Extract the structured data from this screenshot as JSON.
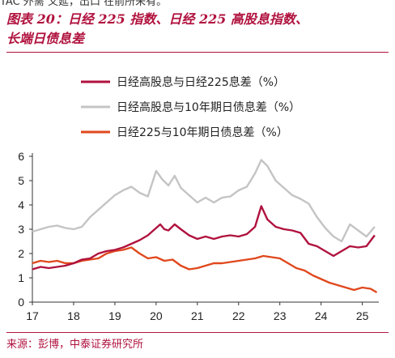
{
  "header": {
    "cut_text": "TAC 外需 又延，出口 在前所未有。",
    "title_line1": "图表 20：日经 225 指数、日经 225 高股息指数、",
    "title_line2": "长端日债息差"
  },
  "footer": {
    "source": "来源：彭博，中泰证券研究所"
  },
  "chart_data": {
    "type": "line",
    "title": "",
    "xlabel": "",
    "ylabel": "",
    "ylim": [
      0,
      6
    ],
    "yticks": [
      "0",
      "1",
      "2",
      "3",
      "4",
      "5",
      "6"
    ],
    "xlim": [
      2017.0,
      2025.4
    ],
    "xticks": [
      "17",
      "18",
      "19",
      "20",
      "21",
      "22",
      "23",
      "24",
      "25"
    ],
    "grid": false,
    "legend": "top-left",
    "series": [
      {
        "name": "日经高股息与日经225息差（%）",
        "color": "#b0123e",
        "x": [
          2017.0,
          2017.2,
          2017.4,
          2017.6,
          2017.8,
          2018.0,
          2018.2,
          2018.4,
          2018.6,
          2018.8,
          2019.0,
          2019.2,
          2019.4,
          2019.6,
          2019.8,
          2020.0,
          2020.1,
          2020.2,
          2020.3,
          2020.45,
          2020.6,
          2020.8,
          2021.0,
          2021.2,
          2021.4,
          2021.6,
          2021.8,
          2022.0,
          2022.2,
          2022.4,
          2022.55,
          2022.7,
          2022.9,
          2023.1,
          2023.3,
          2023.5,
          2023.7,
          2023.9,
          2024.1,
          2024.3,
          2024.5,
          2024.7,
          2024.9,
          2025.1,
          2025.3
        ],
        "y": [
          1.35,
          1.45,
          1.4,
          1.45,
          1.5,
          1.6,
          1.75,
          1.8,
          2.0,
          2.1,
          2.15,
          2.25,
          2.4,
          2.55,
          2.75,
          3.05,
          3.2,
          3.0,
          2.95,
          3.2,
          3.0,
          2.75,
          2.6,
          2.7,
          2.6,
          2.7,
          2.75,
          2.7,
          2.8,
          3.1,
          3.95,
          3.4,
          3.1,
          3.0,
          2.95,
          2.85,
          2.4,
          2.3,
          2.1,
          1.9,
          2.1,
          2.3,
          2.25,
          2.3,
          2.75
        ]
      },
      {
        "name": "日经高股息与10年期日债息差（%）",
        "color": "#c4c4c4",
        "x": [
          2017.0,
          2017.2,
          2017.4,
          2017.6,
          2017.8,
          2018.0,
          2018.2,
          2018.4,
          2018.6,
          2018.8,
          2019.0,
          2019.2,
          2019.4,
          2019.6,
          2019.8,
          2020.0,
          2020.15,
          2020.3,
          2020.45,
          2020.6,
          2020.8,
          2021.0,
          2021.2,
          2021.4,
          2021.6,
          2021.8,
          2022.0,
          2022.2,
          2022.4,
          2022.55,
          2022.7,
          2022.9,
          2023.1,
          2023.3,
          2023.5,
          2023.7,
          2023.9,
          2024.1,
          2024.3,
          2024.5,
          2024.7,
          2024.9,
          2025.1,
          2025.3
        ],
        "y": [
          2.9,
          3.0,
          3.1,
          3.15,
          3.05,
          3.0,
          3.1,
          3.5,
          3.8,
          4.1,
          4.4,
          4.6,
          4.75,
          4.5,
          4.35,
          5.4,
          5.05,
          4.8,
          5.2,
          4.7,
          4.4,
          4.1,
          4.3,
          4.1,
          4.3,
          4.35,
          4.6,
          4.75,
          5.3,
          5.85,
          5.6,
          5.0,
          4.7,
          4.4,
          4.25,
          4.05,
          3.5,
          3.05,
          2.7,
          2.5,
          3.2,
          2.95,
          2.7,
          3.1
        ]
      },
      {
        "name": "日经225与10年期日债息差（%）",
        "color": "#e0481d",
        "x": [
          2017.0,
          2017.2,
          2017.4,
          2017.6,
          2017.8,
          2018.0,
          2018.2,
          2018.4,
          2018.6,
          2018.8,
          2019.0,
          2019.2,
          2019.4,
          2019.6,
          2019.8,
          2020.0,
          2020.2,
          2020.4,
          2020.6,
          2020.8,
          2021.0,
          2021.2,
          2021.4,
          2021.6,
          2021.8,
          2022.0,
          2022.2,
          2022.4,
          2022.6,
          2022.8,
          2023.0,
          2023.2,
          2023.4,
          2023.6,
          2023.8,
          2024.0,
          2024.2,
          2024.4,
          2024.6,
          2024.8,
          2025.0,
          2025.2,
          2025.35
        ],
        "y": [
          1.6,
          1.7,
          1.65,
          1.7,
          1.6,
          1.6,
          1.7,
          1.75,
          1.8,
          2.0,
          2.1,
          2.15,
          2.25,
          2.0,
          1.8,
          1.85,
          1.7,
          1.75,
          1.5,
          1.35,
          1.4,
          1.5,
          1.6,
          1.6,
          1.65,
          1.7,
          1.75,
          1.8,
          1.9,
          1.85,
          1.8,
          1.6,
          1.4,
          1.3,
          1.1,
          0.95,
          0.8,
          0.7,
          0.6,
          0.5,
          0.6,
          0.55,
          0.4
        ]
      }
    ]
  }
}
